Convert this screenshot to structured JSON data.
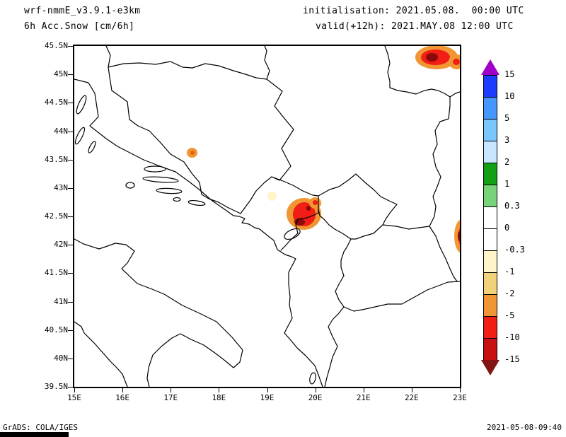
{
  "header": {
    "model_line": "wrf-nmmE_v3.9.1-e3km",
    "variable_line": "6h Acc.Snow [cm/6h]",
    "init_line": "initialisation: 2021.05.08.  00:00 UTC",
    "valid_line": "valid(+12h): 2021.MAY.08 12:00 UTC"
  },
  "footer": {
    "grads_credit": "GrADS: COLA/IGES",
    "timestamp": "2021-05-08-09:40"
  },
  "chart_data": {
    "type": "heatmap",
    "title": "6h Acc.Snow [cm/6h]",
    "model": "wrf-nmmE_v3.9.1-e3km",
    "initialisation": "2021.05.08. 00:00 UTC",
    "valid": "2021.MAY.08 12:00 UTC",
    "forecast_hour": "+12h",
    "region": "Adriatic / Balkans",
    "gridlines": false,
    "x_axis": {
      "unit": "degrees east",
      "range": [
        15,
        23
      ],
      "ticks": [
        "15E",
        "16E",
        "17E",
        "18E",
        "19E",
        "20E",
        "21E",
        "22E",
        "23E"
      ]
    },
    "y_axis": {
      "unit": "degrees north",
      "range": [
        39.5,
        45.5
      ],
      "ticks": [
        "45.5N",
        "45N",
        "44.5N",
        "44N",
        "43.5N",
        "43N",
        "42.5N",
        "42N",
        "41.5N",
        "41N",
        "40.5N",
        "40N",
        "39.5N"
      ]
    },
    "colorbar": {
      "levels": [
        "15",
        "10",
        "5",
        "3",
        "2",
        "1",
        "0.3",
        "0",
        "-0.3",
        "-1",
        "-2",
        "-5",
        "-10",
        "-15"
      ],
      "colors_top_to_bottom": [
        "#A000C8",
        "#1E3CFF",
        "#4696FF",
        "#78C8FF",
        "#C8E6FF",
        "#14A014",
        "#78D278",
        "#FFFFFF",
        "#FFFFFF",
        "#FFF5C8",
        "#F0D278",
        "#F09632",
        "#F01E14",
        "#C81010",
        "#821414"
      ]
    },
    "snow_cells": [
      {
        "name": "south-banat-max",
        "lon": 22.52,
        "lat": 45.3,
        "peak_band": "-10..-15 (dark red)",
        "layers": [
          {
            "color": "#F09632",
            "w": 0.88,
            "h": 0.42
          },
          {
            "color": "#F01E14",
            "w": 0.6,
            "h": 0.28,
            "dlon": -0.03
          },
          {
            "color": "#8C0A0A",
            "w": 0.26,
            "h": 0.16,
            "dlon": -0.1
          }
        ]
      },
      {
        "name": "south-banat-max-east-lobe",
        "lon": 22.93,
        "lat": 45.22,
        "peak_band": "-5..-10 (red)",
        "layers": [
          {
            "color": "#F09632",
            "w": 0.34,
            "h": 0.26
          },
          {
            "color": "#F01E14",
            "w": 0.15,
            "h": 0.12
          }
        ]
      },
      {
        "name": "central-bosnia-spot",
        "lon": 17.45,
        "lat": 43.62,
        "peak_band": "-2..-5 (orange)",
        "layers": [
          {
            "color": "#F09632",
            "w": 0.22,
            "h": 0.18
          },
          {
            "color": "#E06414",
            "w": 0.09,
            "h": 0.08
          }
        ]
      },
      {
        "name": "montenegro-max",
        "lon": 19.77,
        "lat": 42.54,
        "peak_band": "-10..-15 (dark red)",
        "layers": [
          {
            "color": "#F09632",
            "w": 0.72,
            "h": 0.56
          },
          {
            "color": "#F01E14",
            "w": 0.47,
            "h": 0.42
          }
        ]
      },
      {
        "name": "montenegro-max-core-south",
        "lon": 19.67,
        "lat": 42.4,
        "peak_band": "dark red core",
        "layers": [
          {
            "color": "#8C0A0A",
            "w": 0.22,
            "h": 0.13
          }
        ]
      },
      {
        "name": "montenegro-max-core-north",
        "lon": 19.86,
        "lat": 42.64,
        "peak_band": "dark red core",
        "layers": [
          {
            "color": "#8C0A0A",
            "w": 0.1,
            "h": 0.09
          }
        ]
      },
      {
        "name": "kosovo-border-lobe",
        "lon": 20.0,
        "lat": 42.74,
        "peak_band": "-5..-10 (red)",
        "layers": [
          {
            "color": "#F09632",
            "w": 0.26,
            "h": 0.2
          },
          {
            "color": "#F01E14",
            "w": 0.11,
            "h": 0.09
          }
        ]
      },
      {
        "name": "skadar-weak-spot",
        "lon": 19.1,
        "lat": 42.85,
        "peak_band": "-0.3..-1 (pale yellow)",
        "layers": [
          {
            "color": "#FFF5C8",
            "w": 0.2,
            "h": 0.16
          }
        ]
      },
      {
        "name": "serbia-bulgaria-border-max",
        "lon": 23.04,
        "lat": 42.15,
        "peak_band": "-10..-15 (dark red)",
        "layers": [
          {
            "color": "#F09632",
            "w": 0.32,
            "h": 0.6
          },
          {
            "color": "#F01E14",
            "w": 0.14,
            "h": 0.34
          },
          {
            "color": "#8C0A0A",
            "w": 0.07,
            "h": 0.18,
            "dlon": -0.05
          }
        ]
      }
    ]
  }
}
